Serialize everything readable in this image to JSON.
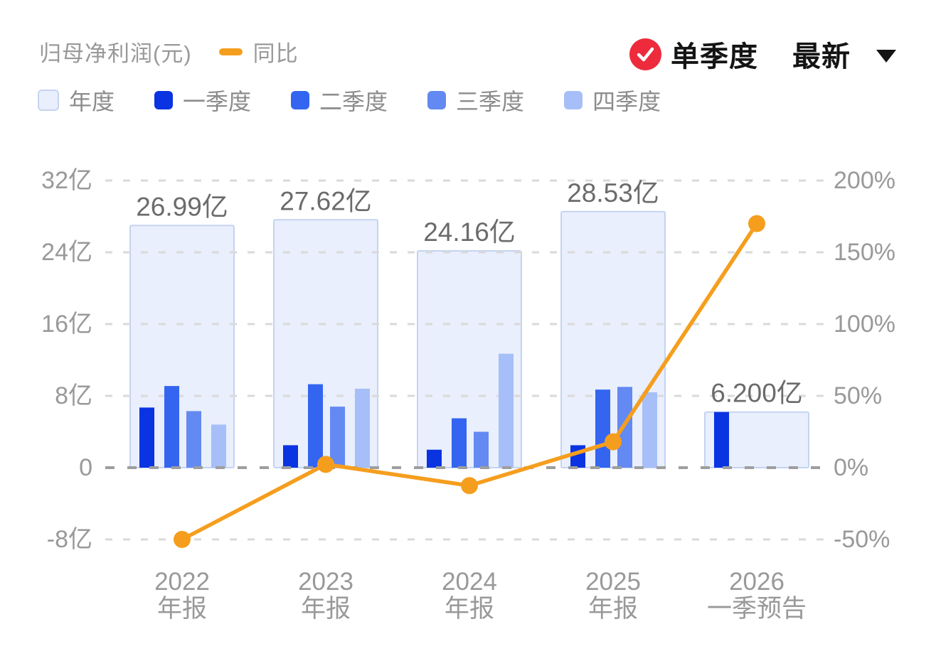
{
  "header": {
    "title": "归母净利润(元)",
    "line_legend_label": "同比",
    "mode_label": "单季度",
    "period_selector_label": "最新",
    "series_legend": [
      {
        "label": "年度"
      },
      {
        "label": "一季度"
      },
      {
        "label": "二季度"
      },
      {
        "label": "三季度"
      },
      {
        "label": "四季度"
      }
    ]
  },
  "colors": {
    "annual_fill": "#e9effc",
    "annual_border": "#c5d3f2",
    "q1": "#0a33e1",
    "q2": "#3365f1",
    "q3": "#6389f2",
    "q4": "#a6bff8",
    "line_orange": "#f59e1e",
    "check_red": "#ed2b3d",
    "axis_text": "#999999",
    "value_label_text": "#6b6b6b",
    "grid_light": "#dadada",
    "grid_zero": "#9e9e9e"
  },
  "chart_data": {
    "type": "bar+line",
    "title": "归母净利润(元)",
    "unit": "亿",
    "legend_position": "top",
    "grid": "dashed horizontal",
    "categories": [
      {
        "line1": "2022",
        "line2": "年报"
      },
      {
        "line1": "2023",
        "line2": "年报"
      },
      {
        "line1": "2024",
        "line2": "年报"
      },
      {
        "line1": "2025",
        "line2": "年报"
      },
      {
        "line1": "2026",
        "line2": "一季预告"
      }
    ],
    "annual_series": {
      "name": "年度",
      "values": [
        26.99,
        27.62,
        24.16,
        28.53,
        6.2
      ],
      "labels": [
        "26.99亿",
        "27.62亿",
        "24.16亿",
        "28.53亿",
        "6.200亿"
      ]
    },
    "quarter_series": [
      {
        "name": "一季度",
        "color_key": "q1",
        "values": [
          6.7,
          2.5,
          2.0,
          2.5,
          6.2
        ]
      },
      {
        "name": "二季度",
        "color_key": "q2",
        "values": [
          9.1,
          9.3,
          5.5,
          8.7,
          null
        ]
      },
      {
        "name": "三季度",
        "color_key": "q3",
        "values": [
          6.3,
          6.8,
          4.0,
          9.0,
          null
        ]
      },
      {
        "name": "四季度",
        "color_key": "q4",
        "values": [
          4.8,
          8.8,
          12.7,
          8.4,
          null
        ]
      }
    ],
    "line_series": {
      "name": "同比",
      "values_pct": [
        -50,
        2.3,
        -12.5,
        18,
        170
      ]
    },
    "left_axis": {
      "ticks": [
        "32亿",
        "24亿",
        "16亿",
        "8亿",
        "0",
        "-8亿"
      ],
      "values": [
        32,
        24,
        16,
        8,
        0,
        -8
      ],
      "range": [
        -8,
        32
      ]
    },
    "right_axis": {
      "ticks": [
        "200%",
        "150%",
        "100%",
        "50%",
        "0%",
        "-50%"
      ],
      "values": [
        200,
        150,
        100,
        50,
        0,
        -50
      ],
      "range": [
        -50,
        200
      ]
    }
  }
}
